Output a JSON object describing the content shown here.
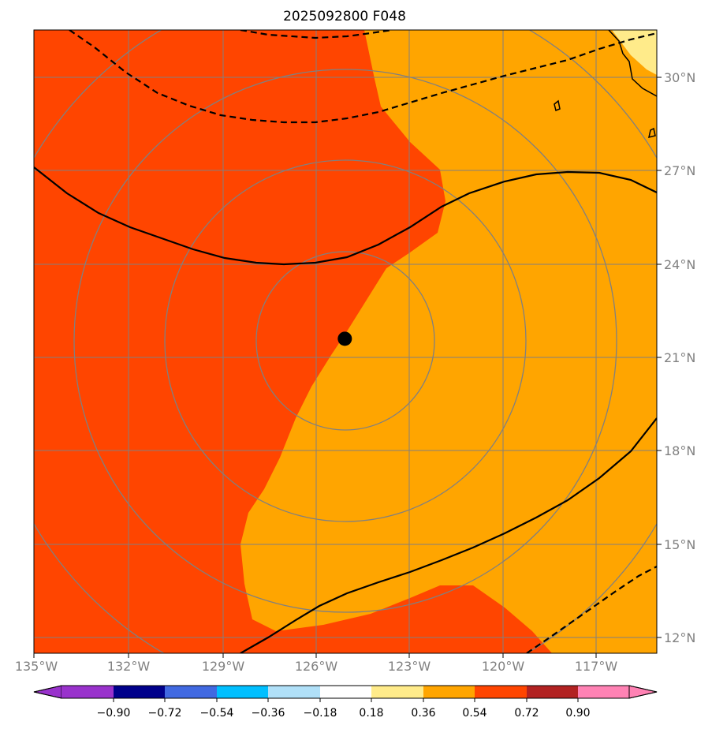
{
  "title": "2025092800 F048",
  "map": {
    "colors": {
      "land_fill": "#ff4500",
      "orange_fill": "#ffa500",
      "yellow_fill": "#ffeb8a",
      "grid": "#808080",
      "contour": "#000000"
    },
    "center_marker": {
      "lon": -125.0,
      "lat": 21.6,
      "icon": "black-dot"
    },
    "lon_ticks": [
      "135°W",
      "132°W",
      "129°W",
      "126°W",
      "123°W",
      "120°W",
      "117°W"
    ],
    "lat_ticks": [
      "30°N",
      "27°N",
      "24°N",
      "21°N",
      "18°N",
      "15°N",
      "12°N"
    ]
  },
  "colorbar": {
    "labels": [
      "−0.90",
      "−0.72",
      "−0.54",
      "−0.36",
      "−0.18",
      "0.18",
      "0.36",
      "0.54",
      "0.72",
      "0.90"
    ],
    "colors": [
      "#9932cc",
      "#00008b",
      "#4169e1",
      "#00bfff",
      "#b0e0f8",
      "#ffffff",
      "#ffeb8a",
      "#ffa500",
      "#ff4500",
      "#b22222",
      "#ff82b4"
    ]
  }
}
